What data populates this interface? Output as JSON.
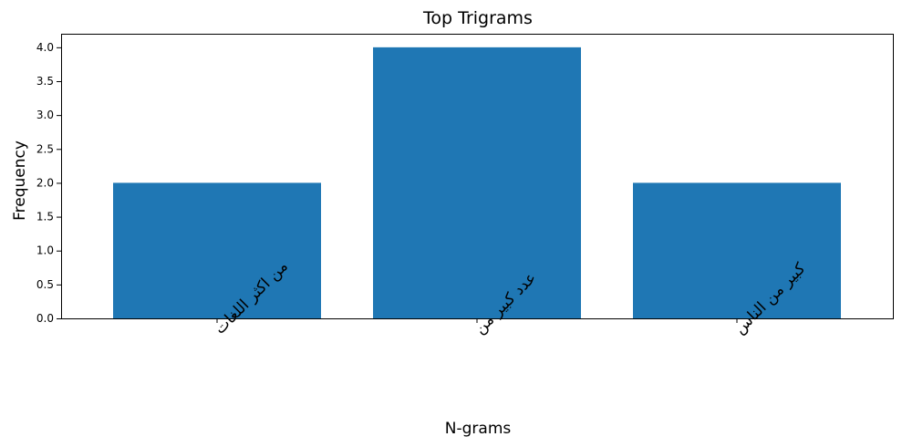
{
  "chart_data": {
    "type": "bar",
    "title": "Top Trigrams",
    "xlabel": "N-grams",
    "ylabel": "Frequency",
    "categories": [
      "من اكثر اللغات",
      "عدد كبير من",
      "كبير من الناس"
    ],
    "values": [
      2,
      4,
      2
    ],
    "ylim": [
      0,
      4.2
    ],
    "yticks": [
      "0.0",
      "0.5",
      "1.0",
      "1.5",
      "2.0",
      "2.5",
      "3.0",
      "3.5",
      "4.0"
    ],
    "bar_color": "#1f77b4",
    "grid": false
  }
}
